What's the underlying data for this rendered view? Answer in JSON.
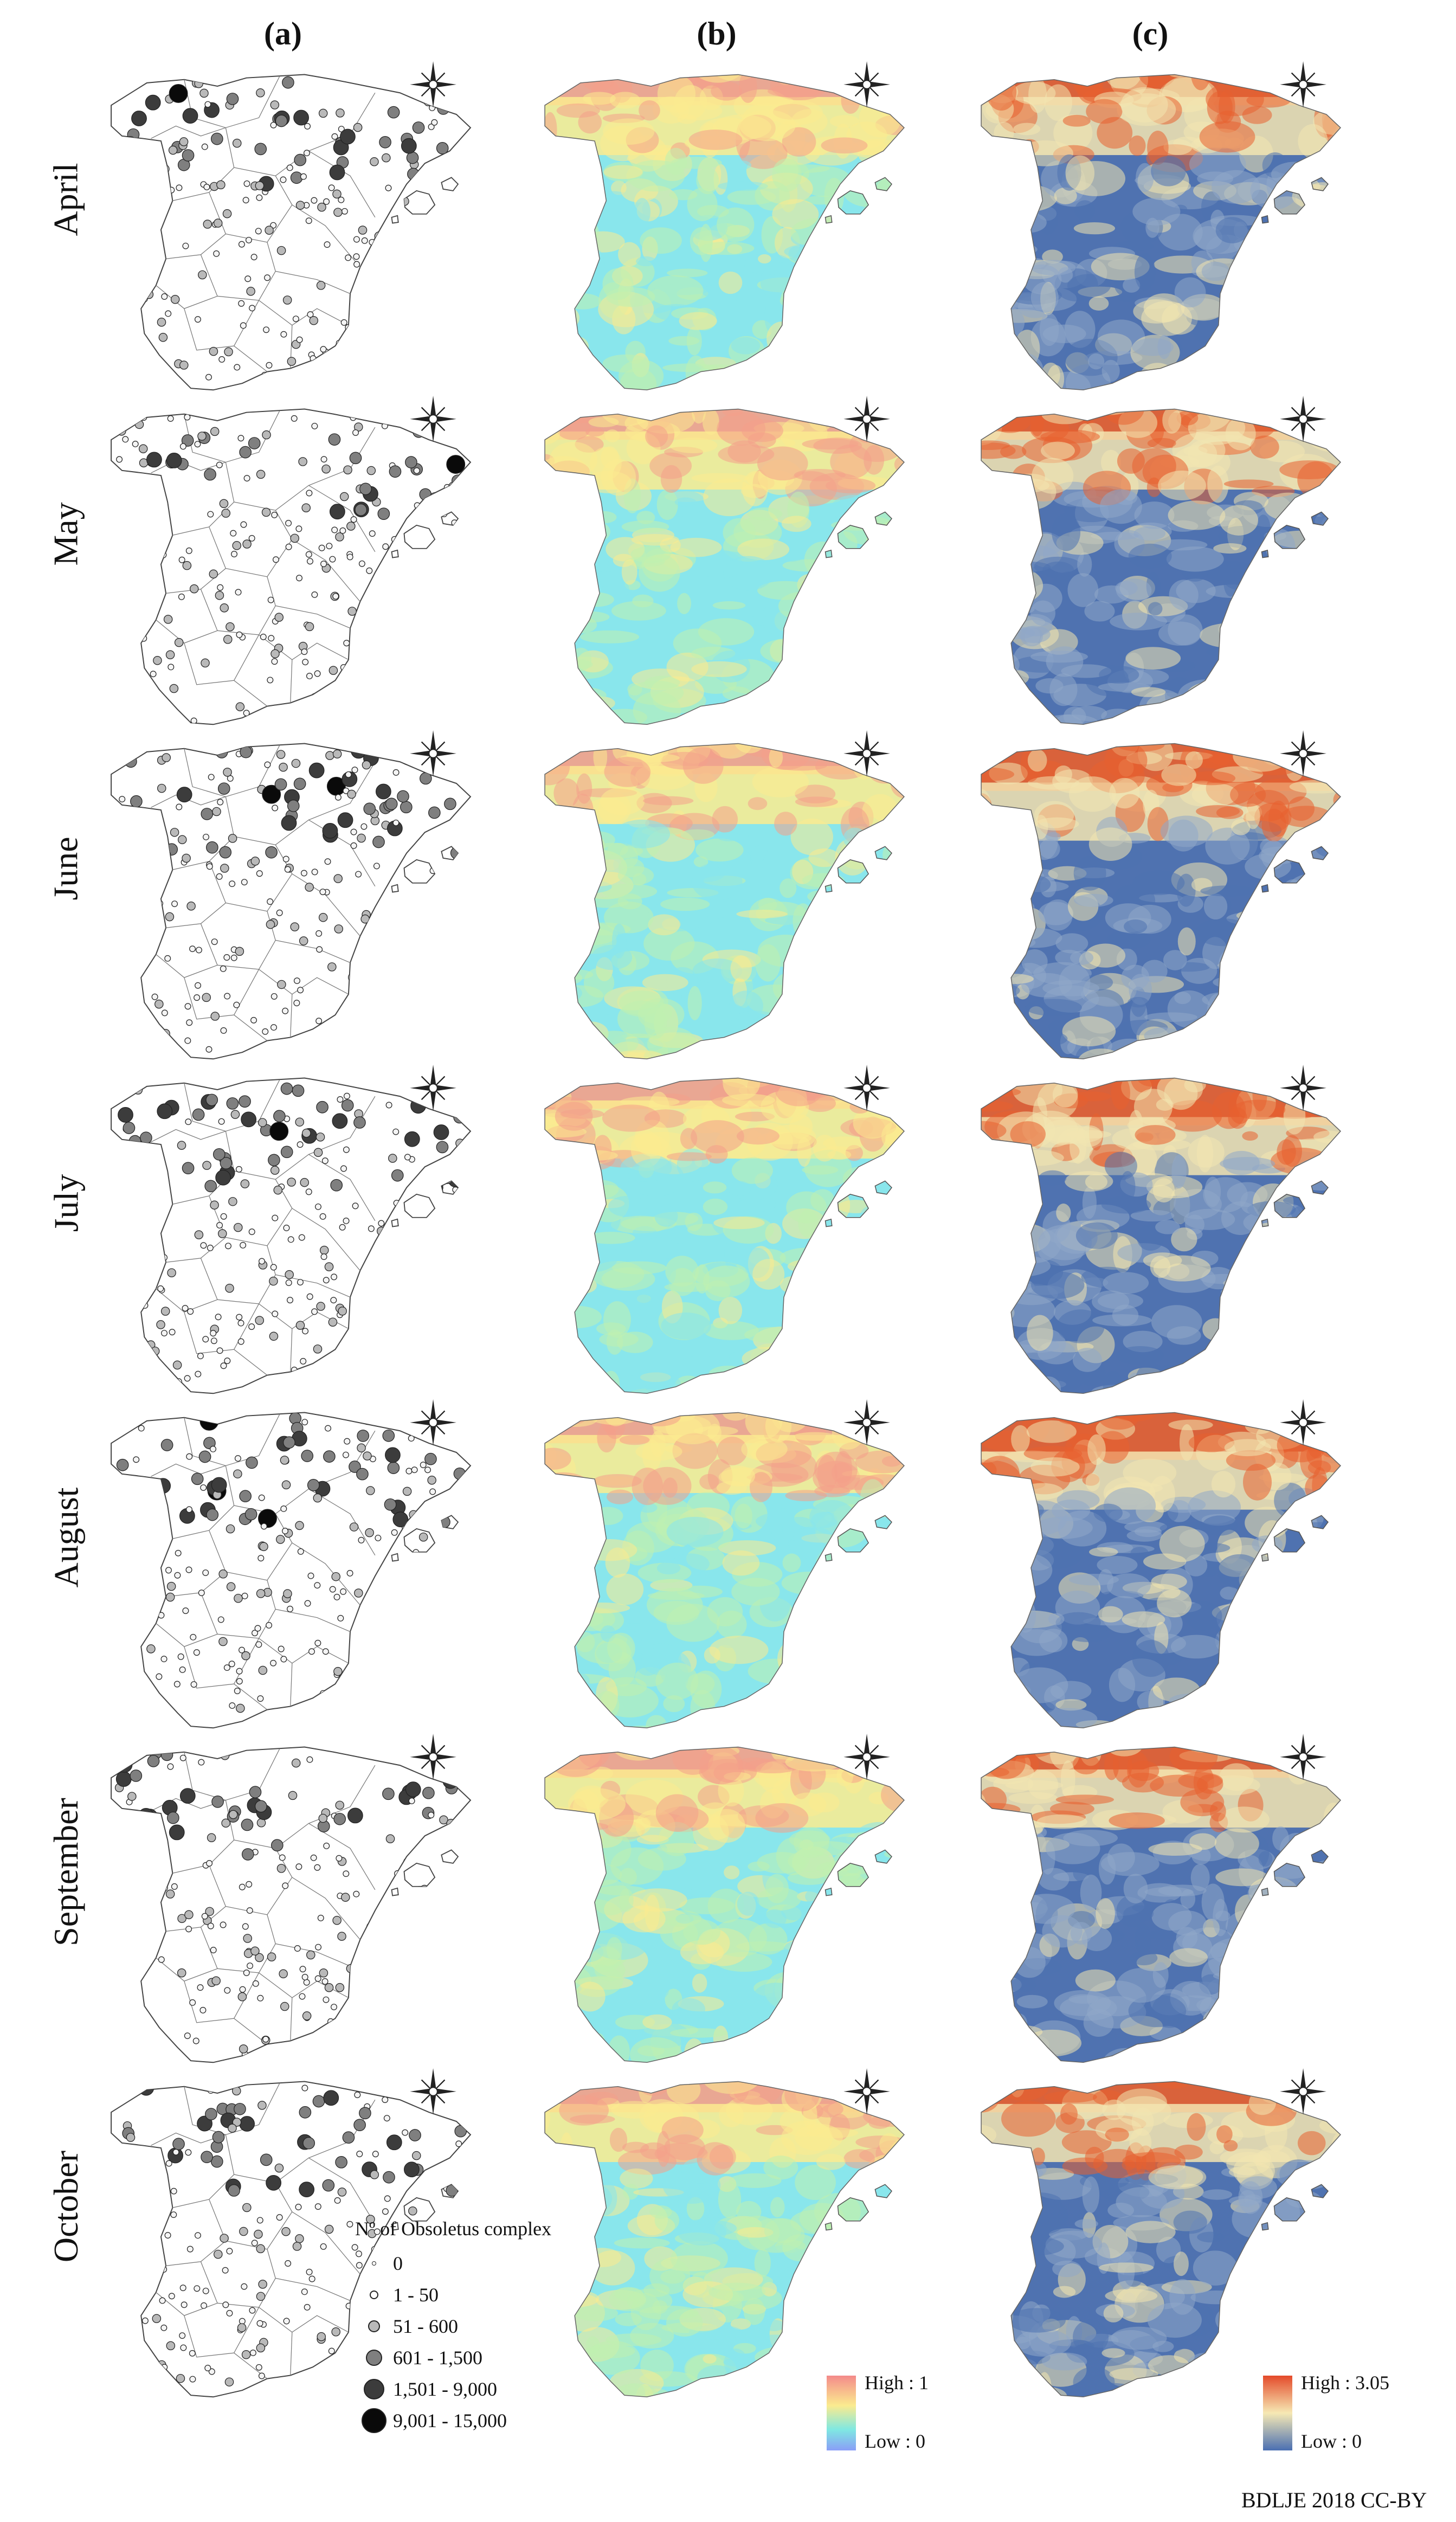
{
  "columns": [
    {
      "label": "(a)"
    },
    {
      "label": "(b)"
    },
    {
      "label": "(c)"
    }
  ],
  "months": [
    "April",
    "May",
    "June",
    "July",
    "August",
    "September",
    "October"
  ],
  "legend_a": {
    "title": "Nº of Obsoletus complex",
    "classes": [
      {
        "label": "0",
        "color": "#ffffff"
      },
      {
        "label": "1 - 50",
        "color": "#f4f4f4"
      },
      {
        "label": "51 - 600",
        "color": "#b9b9b9"
      },
      {
        "label": "601 - 1,500",
        "color": "#7f7f7f"
      },
      {
        "label": "1,501 - 9,000",
        "color": "#3c3c3c"
      },
      {
        "label": "9,001 - 15,000",
        "color": "#0a0a0a"
      }
    ]
  },
  "legend_b": {
    "high": "High : 1",
    "low": "Low : 0",
    "colors": [
      "#f48a8a",
      "#fbeb8f",
      "#7fe8e2",
      "#8a9ef7"
    ]
  },
  "legend_c": {
    "high": "High : 3.05",
    "low": "Low : 0",
    "colors": [
      "#e44a2a",
      "#f6e9b4",
      "#4a6fb2"
    ]
  },
  "credit": "BDLJE 2018 CC-BY",
  "palettes": {
    "a_outline": "#555555",
    "b": [
      "#f4a08a",
      "#fbeb8f",
      "#bff0b0",
      "#89e6ec"
    ],
    "c": [
      "#e8612f",
      "#f3e5b1",
      "#8fa7c9",
      "#4f72b0"
    ]
  }
}
